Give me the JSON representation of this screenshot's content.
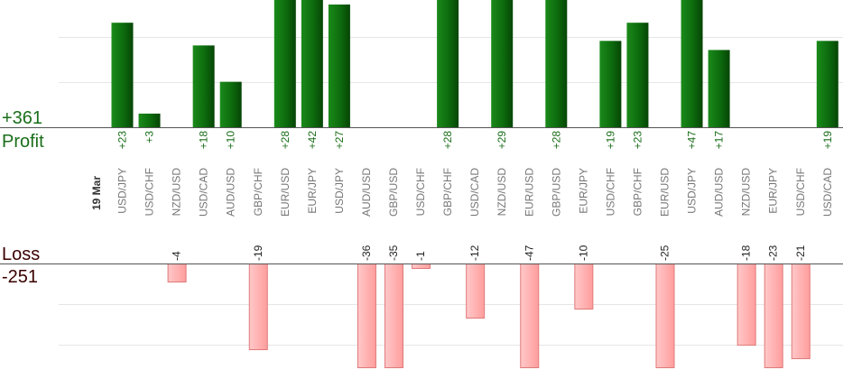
{
  "summary": {
    "profit_total": "+361",
    "profit_label": "Profit",
    "loss_label": "Loss",
    "loss_total": "-251",
    "date_label": "19 Mar"
  },
  "colors": {
    "profit_bar_dark": "#0a5a0a",
    "profit_bar_light": "#1a8a1a",
    "profit_text": "#1a6e1a",
    "loss_bar_fill": "#ffb3b3",
    "loss_bar_stroke": "#e07a7a",
    "loss_text": "#3a0000",
    "pair_text": "#777777",
    "axis": "#555555",
    "grid": "#e6e6e6"
  },
  "chart_data": {
    "type": "bar",
    "categories": [
      "USD/JPY",
      "USD/CHF",
      "NZD/USD",
      "USD/CAD",
      "AUD/USD",
      "GBP/CHF",
      "EUR/USD",
      "EUR/JPY",
      "USD/JPY",
      "AUD/USD",
      "GBP/USD",
      "USD/CHF",
      "GBP/CHF",
      "USD/CAD",
      "NZD/USD",
      "EUR/USD",
      "GBP/USD",
      "EUR/JPY",
      "USD/CHF",
      "GBP/CHF",
      "EUR/USD",
      "USD/JPY",
      "AUD/USD",
      "NZD/USD",
      "EUR/JPY",
      "USD/CHF",
      "USD/CAD"
    ],
    "series": [
      {
        "values": [
          23,
          3,
          null,
          18,
          10,
          null,
          28,
          42,
          27,
          null,
          null,
          null,
          28,
          null,
          29,
          null,
          28,
          null,
          19,
          23,
          null,
          47,
          17,
          null,
          null,
          null,
          19
        ]
      },
      {
        "values": [
          null,
          null,
          -4,
          null,
          null,
          -19,
          null,
          null,
          null,
          -36,
          -35,
          -1,
          null,
          -12,
          null,
          -47,
          null,
          -10,
          null,
          null,
          -25,
          null,
          null,
          -18,
          -23,
          -21,
          null
        ]
      }
    ],
    "value_labels": [
      "+23",
      "+3",
      "-4",
      "+18",
      "+10",
      "-19",
      "+28",
      "+42",
      "+27",
      "-36",
      "-35",
      "-1",
      "+28",
      "-12",
      "+29",
      "-47",
      "+28",
      "-10",
      "+19",
      "+23",
      "-25",
      "+47",
      "+17",
      "-18",
      "-23",
      "-21",
      "+19"
    ],
    "ylim_profit": [
      0,
      28
    ],
    "ylim_loss": [
      -23,
      0
    ],
    "grid": true
  }
}
